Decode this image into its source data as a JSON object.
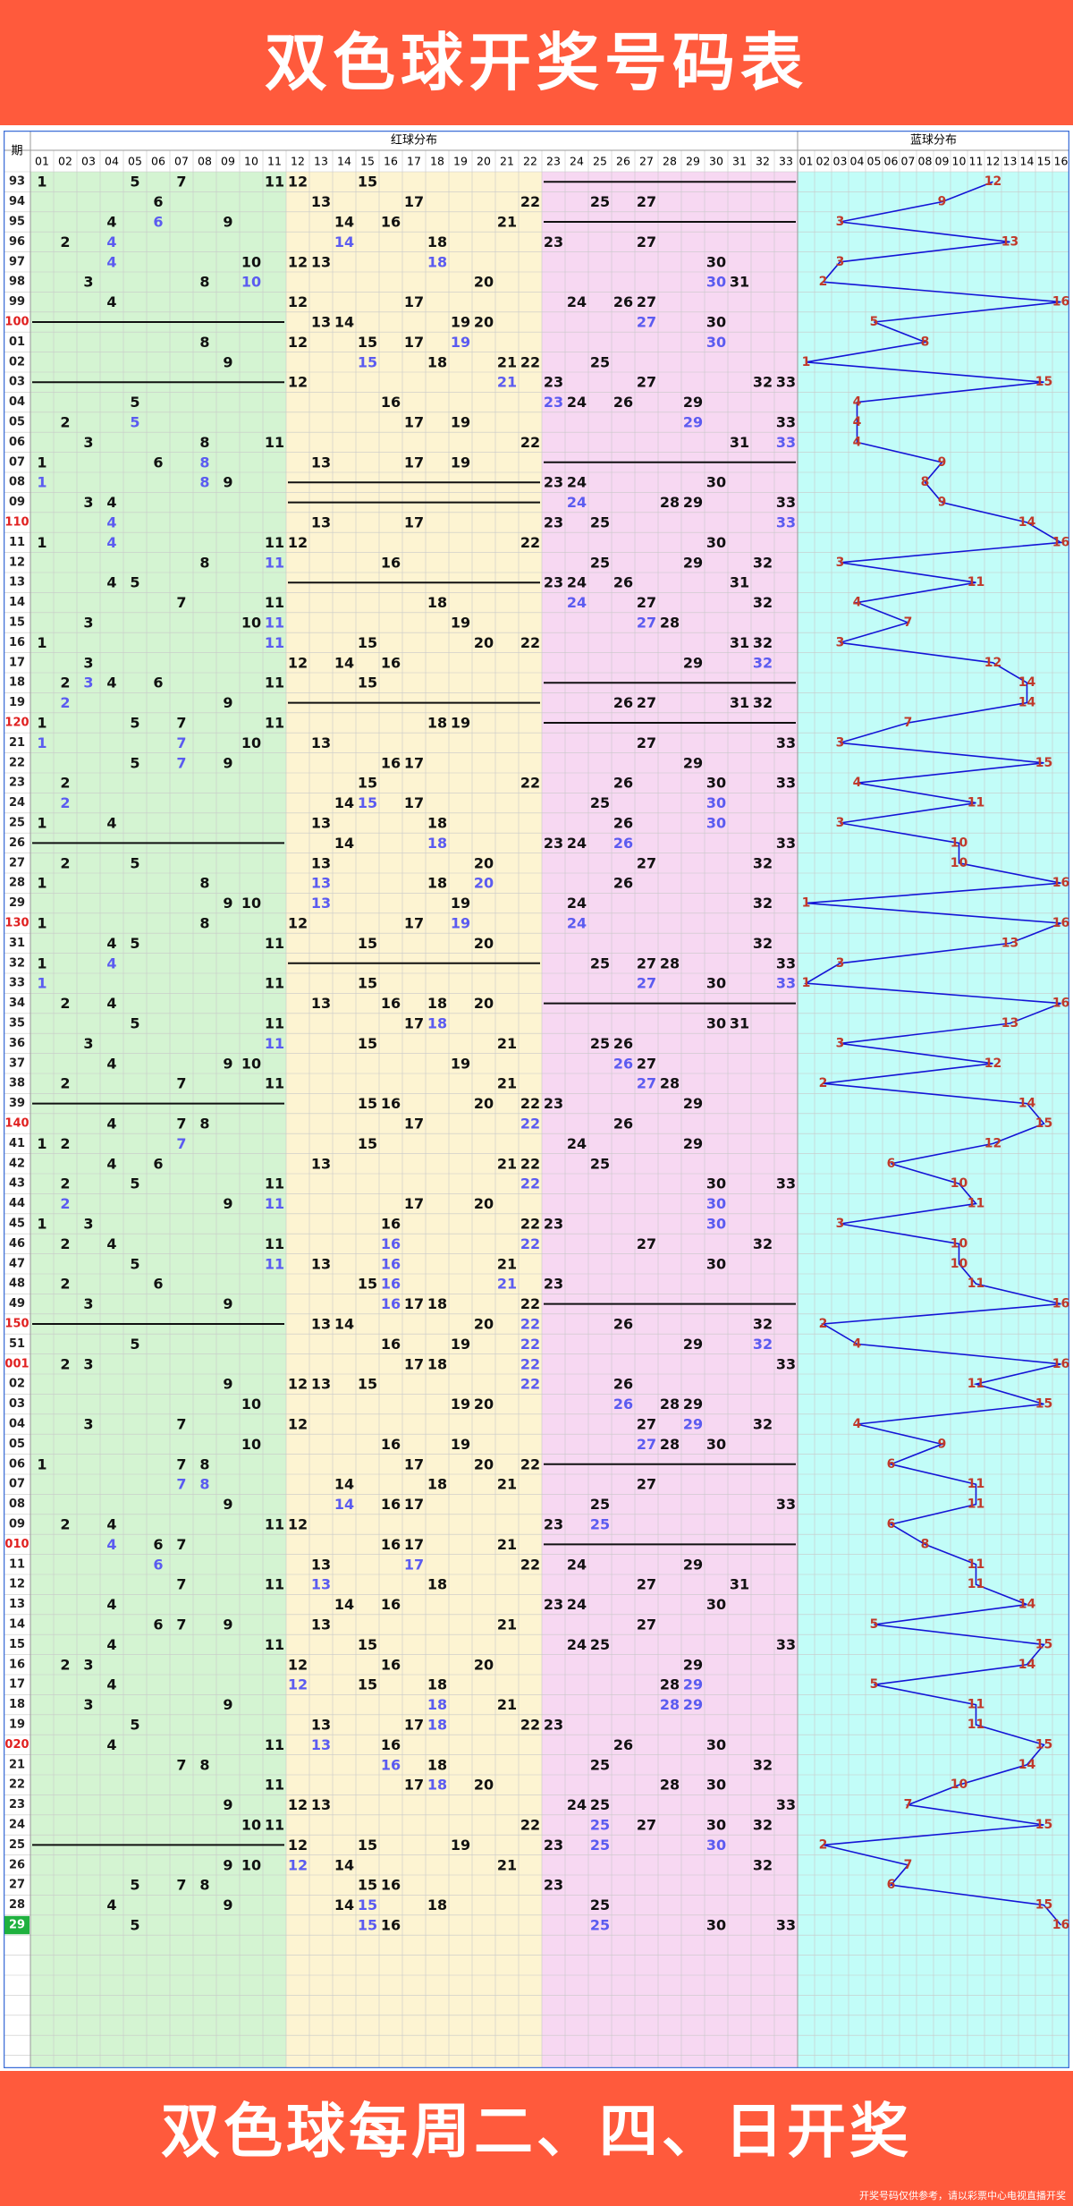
{
  "header": {
    "title": "双色球开奖号码表"
  },
  "footer": {
    "slogan": "双色球每周二、四、日开奖",
    "disclaimer": "开奖号码仅供参考，请以彩票中心电视直播开奖"
  },
  "colors": {
    "banner": "#ff5a3c",
    "zone1": "#d4f4d2",
    "zone2": "#fdf4d2",
    "zone3": "#f7d8f2",
    "blueZone": "#c2fdf8",
    "repeatNumber": "#5b5bf0",
    "blueNumber": "#c0392b",
    "blueLine": "#1414d6",
    "issueRed": "#e02020",
    "currentIssueBg": "#1fb13f"
  },
  "chart_data": {
    "type": "table",
    "headers": {
      "issue": "期",
      "red": "红球分布",
      "blue": "蓝球分布"
    },
    "red_columns": [
      "01",
      "02",
      "03",
      "04",
      "05",
      "06",
      "07",
      "08",
      "09",
      "10",
      "11",
      "12",
      "13",
      "14",
      "15",
      "16",
      "17",
      "18",
      "19",
      "20",
      "21",
      "22",
      "23",
      "24",
      "25",
      "26",
      "27",
      "28",
      "29",
      "30",
      "31",
      "32",
      "33"
    ],
    "blue_columns": [
      "01",
      "02",
      "03",
      "04",
      "05",
      "06",
      "07",
      "08",
      "09",
      "10",
      "11",
      "12",
      "13",
      "14",
      "15",
      "16"
    ],
    "red_highlight_rule": "blue text = number repeated from previous draw",
    "empty_rows": 7,
    "draws": [
      {
        "issue": "93",
        "red": [
          1,
          5,
          7,
          11,
          12,
          15
        ],
        "blue": 12
      },
      {
        "issue": "94",
        "red": [
          6,
          13,
          17,
          22,
          25,
          27
        ],
        "blue": 9
      },
      {
        "issue": "95",
        "red": [
          4,
          6,
          9,
          14,
          16,
          21
        ],
        "blue": 3
      },
      {
        "issue": "96",
        "red": [
          2,
          4,
          14,
          18,
          23,
          27
        ],
        "blue": 13
      },
      {
        "issue": "97",
        "red": [
          4,
          10,
          12,
          13,
          18,
          30
        ],
        "blue": 3
      },
      {
        "issue": "98",
        "red": [
          3,
          8,
          10,
          20,
          30,
          31
        ],
        "blue": 2
      },
      {
        "issue": "99",
        "red": [
          4,
          12,
          17,
          24,
          26,
          27
        ],
        "blue": 16
      },
      {
        "issue": "100",
        "red": [
          13,
          14,
          19,
          20,
          27,
          30
        ],
        "blue": 5
      },
      {
        "issue": "01",
        "red": [
          8,
          12,
          15,
          17,
          19,
          30
        ],
        "blue": 8
      },
      {
        "issue": "02",
        "red": [
          9,
          15,
          18,
          21,
          22,
          25
        ],
        "blue": 1
      },
      {
        "issue": "03",
        "red": [
          12,
          21,
          23,
          27,
          32,
          33
        ],
        "blue": 15
      },
      {
        "issue": "04",
        "red": [
          5,
          16,
          23,
          24,
          26,
          29
        ],
        "blue": 4
      },
      {
        "issue": "05",
        "red": [
          2,
          5,
          17,
          19,
          29,
          33
        ],
        "blue": 4
      },
      {
        "issue": "06",
        "red": [
          3,
          8,
          11,
          22,
          31,
          33
        ],
        "blue": 4
      },
      {
        "issue": "07",
        "red": [
          1,
          6,
          8,
          13,
          17,
          19
        ],
        "blue": 9
      },
      {
        "issue": "08",
        "red": [
          1,
          8,
          9,
          23,
          24,
          30
        ],
        "blue": 8
      },
      {
        "issue": "09",
        "red": [
          3,
          4,
          24,
          28,
          29,
          33
        ],
        "blue": 9
      },
      {
        "issue": "110",
        "red": [
          4,
          13,
          17,
          23,
          25,
          33
        ],
        "blue": 14
      },
      {
        "issue": "11",
        "red": [
          1,
          4,
          11,
          12,
          22,
          30
        ],
        "blue": 16
      },
      {
        "issue": "12",
        "red": [
          8,
          11,
          16,
          25,
          29,
          32
        ],
        "blue": 3
      },
      {
        "issue": "13",
        "red": [
          4,
          5,
          23,
          24,
          26,
          31
        ],
        "blue": 11
      },
      {
        "issue": "14",
        "red": [
          7,
          11,
          18,
          24,
          27,
          32
        ],
        "blue": 4
      },
      {
        "issue": "15",
        "red": [
          3,
          10,
          11,
          19,
          27,
          28
        ],
        "blue": 7
      },
      {
        "issue": "16",
        "red": [
          1,
          11,
          15,
          20,
          22,
          31,
          32
        ],
        "blue": 3
      },
      {
        "issue": "17",
        "red": [
          3,
          12,
          14,
          16,
          29,
          32
        ],
        "blue": 12
      },
      {
        "issue": "18",
        "red": [
          2,
          3,
          4,
          6,
          11,
          15
        ],
        "blue": 14
      },
      {
        "issue": "19",
        "red": [
          2,
          9,
          26,
          27,
          31,
          32
        ],
        "blue": 14
      },
      {
        "issue": "120",
        "red": [
          1,
          5,
          7,
          11,
          18,
          19
        ],
        "blue": 7
      },
      {
        "issue": "21",
        "red": [
          1,
          7,
          10,
          13,
          27,
          33
        ],
        "blue": 3
      },
      {
        "issue": "22",
        "red": [
          5,
          7,
          9,
          16,
          17,
          29
        ],
        "blue": 15
      },
      {
        "issue": "23",
        "red": [
          2,
          15,
          22,
          26,
          30,
          33
        ],
        "blue": 4
      },
      {
        "issue": "24",
        "red": [
          2,
          14,
          15,
          17,
          25,
          30
        ],
        "blue": 11
      },
      {
        "issue": "25",
        "red": [
          1,
          4,
          13,
          18,
          26,
          30
        ],
        "blue": 3
      },
      {
        "issue": "26",
        "red": [
          14,
          18,
          23,
          24,
          26,
          33
        ],
        "blue": 10
      },
      {
        "issue": "27",
        "red": [
          2,
          5,
          13,
          20,
          27,
          32
        ],
        "blue": 10
      },
      {
        "issue": "28",
        "red": [
          1,
          8,
          13,
          18,
          20,
          26
        ],
        "blue": 16
      },
      {
        "issue": "29",
        "red": [
          9,
          10,
          13,
          19,
          24,
          32
        ],
        "blue": 1
      },
      {
        "issue": "130",
        "red": [
          1,
          8,
          12,
          17,
          19,
          24
        ],
        "blue": 16
      },
      {
        "issue": "31",
        "red": [
          4,
          5,
          11,
          15,
          20,
          32
        ],
        "blue": 13
      },
      {
        "issue": "32",
        "red": [
          1,
          4,
          25,
          27,
          28,
          33
        ],
        "blue": 3
      },
      {
        "issue": "33",
        "red": [
          1,
          11,
          15,
          27,
          30,
          33
        ],
        "blue": 1
      },
      {
        "issue": "34",
        "red": [
          2,
          4,
          13,
          16,
          18,
          20
        ],
        "blue": 16
      },
      {
        "issue": "35",
        "red": [
          5,
          11,
          17,
          18,
          30,
          31
        ],
        "blue": 13
      },
      {
        "issue": "36",
        "red": [
          3,
          11,
          15,
          21,
          25,
          26
        ],
        "blue": 3
      },
      {
        "issue": "37",
        "red": [
          4,
          9,
          10,
          19,
          26,
          27
        ],
        "blue": 12
      },
      {
        "issue": "38",
        "red": [
          2,
          7,
          11,
          21,
          27,
          28
        ],
        "blue": 2
      },
      {
        "issue": "39",
        "red": [
          15,
          16,
          20,
          22,
          23,
          29
        ],
        "blue": 14
      },
      {
        "issue": "140",
        "red": [
          4,
          7,
          8,
          17,
          22,
          26
        ],
        "blue": 15
      },
      {
        "issue": "41",
        "red": [
          1,
          2,
          7,
          15,
          24,
          29
        ],
        "blue": 12
      },
      {
        "issue": "42",
        "red": [
          4,
          6,
          13,
          21,
          22,
          25
        ],
        "blue": 6
      },
      {
        "issue": "43",
        "red": [
          2,
          5,
          11,
          22,
          30,
          33
        ],
        "blue": 10
      },
      {
        "issue": "44",
        "red": [
          2,
          9,
          11,
          17,
          20,
          30
        ],
        "blue": 11
      },
      {
        "issue": "45",
        "red": [
          1,
          3,
          16,
          22,
          23,
          30
        ],
        "blue": 3
      },
      {
        "issue": "46",
        "red": [
          2,
          4,
          11,
          16,
          22,
          27,
          32
        ],
        "blue": 10
      },
      {
        "issue": "47",
        "red": [
          5,
          11,
          13,
          16,
          21,
          30
        ],
        "blue": 10
      },
      {
        "issue": "48",
        "red": [
          2,
          6,
          15,
          16,
          21,
          23
        ],
        "blue": 11
      },
      {
        "issue": "49",
        "red": [
          3,
          9,
          16,
          17,
          18,
          22
        ],
        "blue": 16
      },
      {
        "issue": "150",
        "red": [
          13,
          14,
          20,
          22,
          26,
          32
        ],
        "blue": 2
      },
      {
        "issue": "51",
        "red": [
          5,
          16,
          19,
          22,
          29,
          32
        ],
        "blue": 4
      },
      {
        "issue": "001",
        "red": [
          2,
          3,
          17,
          18,
          22,
          33
        ],
        "blue": 16
      },
      {
        "issue": "02",
        "red": [
          9,
          12,
          13,
          15,
          22,
          26
        ],
        "blue": 11
      },
      {
        "issue": "03",
        "red": [
          10,
          19,
          20,
          26,
          28,
          29
        ],
        "blue": 15
      },
      {
        "issue": "04",
        "red": [
          3,
          7,
          12,
          27,
          29,
          32
        ],
        "blue": 4
      },
      {
        "issue": "05",
        "red": [
          10,
          16,
          19,
          27,
          28,
          30
        ],
        "blue": 9
      },
      {
        "issue": "06",
        "red": [
          1,
          7,
          8,
          17,
          20,
          22
        ],
        "blue": 6
      },
      {
        "issue": "07",
        "red": [
          7,
          8,
          14,
          18,
          21,
          27
        ],
        "blue": 11
      },
      {
        "issue": "08",
        "red": [
          9,
          14,
          16,
          17,
          25,
          33
        ],
        "blue": 11
      },
      {
        "issue": "09",
        "red": [
          2,
          4,
          11,
          12,
          23,
          25
        ],
        "blue": 6
      },
      {
        "issue": "010",
        "red": [
          4,
          6,
          7,
          16,
          17,
          21
        ],
        "blue": 8
      },
      {
        "issue": "11",
        "red": [
          6,
          13,
          17,
          22,
          24,
          29
        ],
        "blue": 11
      },
      {
        "issue": "12",
        "red": [
          7,
          11,
          13,
          18,
          27,
          31
        ],
        "blue": 11
      },
      {
        "issue": "13",
        "red": [
          4,
          14,
          16,
          23,
          24,
          30
        ],
        "blue": 14
      },
      {
        "issue": "14",
        "red": [
          6,
          7,
          9,
          13,
          21,
          27
        ],
        "blue": 5
      },
      {
        "issue": "15",
        "red": [
          4,
          11,
          15,
          24,
          25,
          33
        ],
        "blue": 15
      },
      {
        "issue": "16",
        "red": [
          2,
          3,
          12,
          16,
          20,
          29
        ],
        "blue": 14
      },
      {
        "issue": "17",
        "red": [
          4,
          12,
          15,
          18,
          28,
          29
        ],
        "blue": 5
      },
      {
        "issue": "18",
        "red": [
          3,
          9,
          18,
          21,
          28,
          29
        ],
        "blue": 11
      },
      {
        "issue": "19",
        "red": [
          5,
          13,
          17,
          18,
          22,
          23
        ],
        "blue": 11
      },
      {
        "issue": "020",
        "red": [
          4,
          11,
          13,
          16,
          26,
          30
        ],
        "blue": 15
      },
      {
        "issue": "21",
        "red": [
          7,
          8,
          16,
          18,
          25,
          32
        ],
        "blue": 14
      },
      {
        "issue": "22",
        "red": [
          11,
          17,
          18,
          20,
          28,
          30
        ],
        "blue": 10
      },
      {
        "issue": "23",
        "red": [
          9,
          12,
          13,
          24,
          25,
          33
        ],
        "blue": 7
      },
      {
        "issue": "24",
        "red": [
          10,
          11,
          22,
          25,
          27,
          30,
          32
        ],
        "blue": 15
      },
      {
        "issue": "25",
        "red": [
          12,
          15,
          19,
          23,
          25,
          30
        ],
        "blue": 2
      },
      {
        "issue": "26",
        "red": [
          9,
          10,
          12,
          14,
          21,
          32
        ],
        "blue": 7
      },
      {
        "issue": "27",
        "red": [
          5,
          7,
          8,
          15,
          16,
          23
        ],
        "blue": 6
      },
      {
        "issue": "28",
        "red": [
          4,
          9,
          14,
          15,
          18,
          25
        ],
        "blue": 15
      },
      {
        "issue": "29",
        "red": [
          5,
          15,
          16,
          25,
          30,
          33
        ],
        "blue": 16
      }
    ]
  }
}
